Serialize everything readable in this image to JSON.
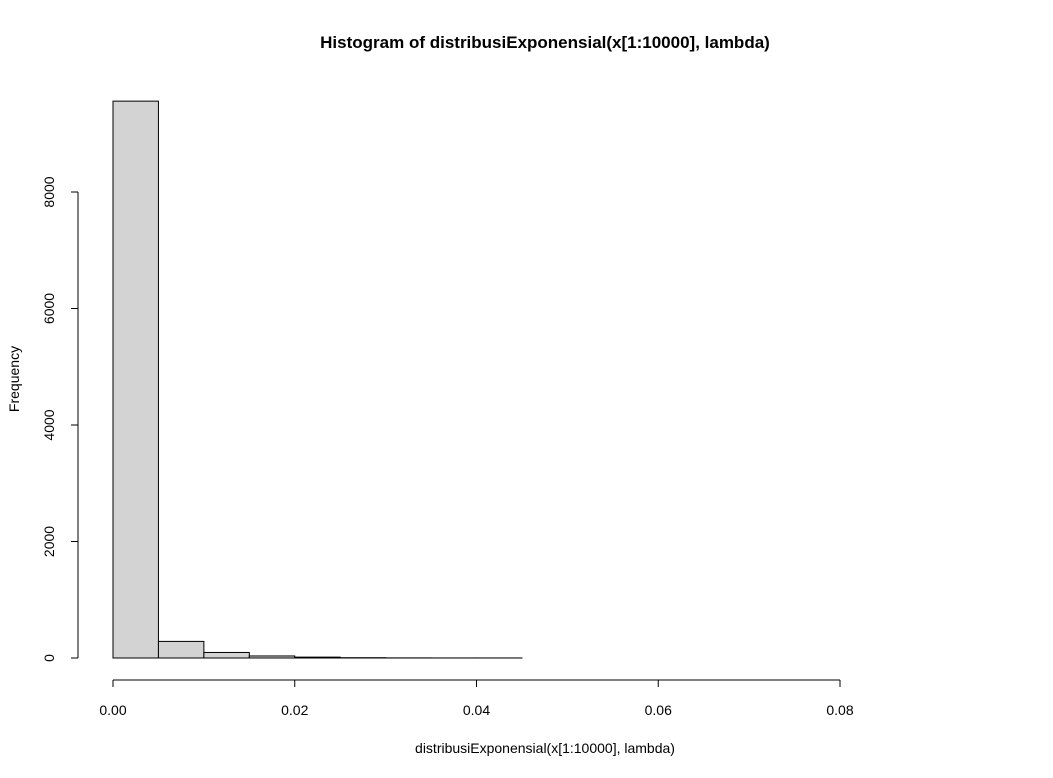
{
  "chart_data": {
    "type": "bar",
    "title": "Histogram of distribusiExponensial(x[1:10000], lambda)",
    "xlabel": "distribusiExponensial(x[1:10000], lambda)",
    "ylabel": "Frequency",
    "bins": [
      {
        "x0": 0.0,
        "x1": 0.005,
        "count": 9560
      },
      {
        "x0": 0.005,
        "x1": 0.01,
        "count": 285
      },
      {
        "x0": 0.01,
        "x1": 0.015,
        "count": 95
      },
      {
        "x0": 0.015,
        "x1": 0.02,
        "count": 35
      },
      {
        "x0": 0.02,
        "x1": 0.025,
        "count": 15
      },
      {
        "x0": 0.025,
        "x1": 0.03,
        "count": 5
      },
      {
        "x0": 0.03,
        "x1": 0.035,
        "count": 2
      },
      {
        "x0": 0.035,
        "x1": 0.04,
        "count": 1
      },
      {
        "x0": 0.04,
        "x1": 0.045,
        "count": 1
      },
      {
        "x0": 0.045,
        "x1": 0.05,
        "count": 0
      },
      {
        "x0": 0.05,
        "x1": 0.055,
        "count": 0
      },
      {
        "x0": 0.055,
        "x1": 0.06,
        "count": 0
      },
      {
        "x0": 0.06,
        "x1": 0.065,
        "count": 0
      },
      {
        "x0": 0.065,
        "x1": 0.07,
        "count": 0
      },
      {
        "x0": 0.07,
        "x1": 0.075,
        "count": 0
      },
      {
        "x0": 0.075,
        "x1": 0.08,
        "count": 0
      },
      {
        "x0": 0.08,
        "x1": 0.085,
        "count": 0
      },
      {
        "x0": 0.085,
        "x1": 0.09,
        "count": 0
      },
      {
        "x0": 0.09,
        "x1": 0.095,
        "count": 0
      }
    ],
    "xticks": [
      0.0,
      0.02,
      0.04,
      0.06,
      0.08
    ],
    "xtick_labels": [
      "0.00",
      "0.02",
      "0.04",
      "0.06",
      "0.08"
    ],
    "yticks": [
      0,
      2000,
      4000,
      6000,
      8000
    ],
    "ytick_labels": [
      "0",
      "2000",
      "4000",
      "6000",
      "8000"
    ],
    "xlim": [
      0,
      0.095
    ],
    "ylim": [
      0,
      9560
    ],
    "grid": false,
    "colors": {
      "bar_fill": "#d3d3d3",
      "bar_stroke": "#000000"
    }
  }
}
